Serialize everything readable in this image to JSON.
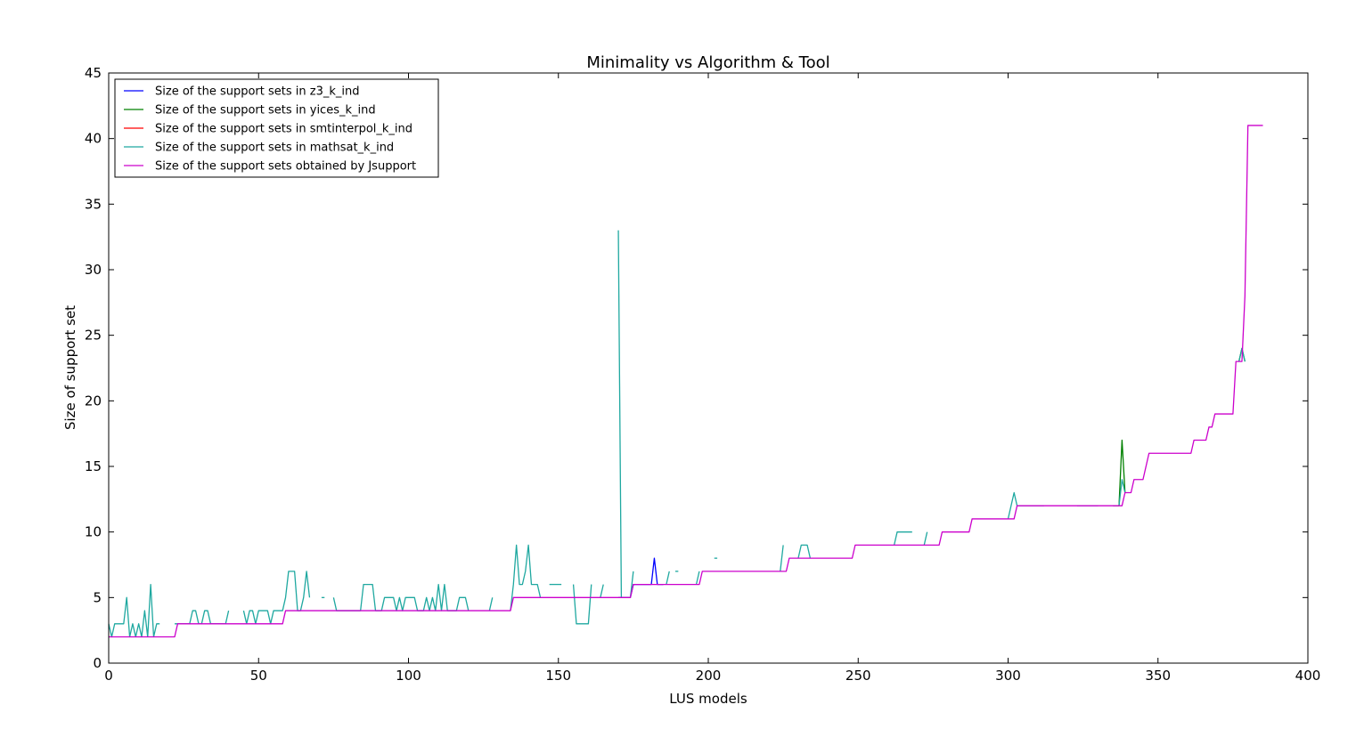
{
  "chart_data": {
    "type": "line",
    "title": "Minimality vs Algorithm & Tool",
    "xlabel": "LUS models",
    "ylabel": "Size of support set",
    "xlim": [
      0,
      400
    ],
    "ylim": [
      0,
      45
    ],
    "xticks": [
      0,
      50,
      100,
      150,
      200,
      250,
      300,
      350,
      400
    ],
    "yticks": [
      0,
      5,
      10,
      15,
      20,
      25,
      30,
      35,
      40,
      45
    ],
    "legend_position": "top-left",
    "series": [
      {
        "name": "Size of the support sets in z3_k_ind",
        "color": "#0000ff",
        "segments": [
          [
            [
              170,
              5
            ],
            [
              171,
              5
            ],
            [
              172,
              5
            ],
            [
              173,
              5
            ],
            [
              174,
              5
            ],
            [
              175,
              6
            ],
            [
              176,
              6
            ],
            [
              177,
              6
            ],
            [
              178,
              6
            ],
            [
              179,
              6
            ],
            [
              180,
              6
            ],
            [
              181,
              6
            ],
            [
              182,
              8
            ],
            [
              183,
              6
            ],
            [
              184,
              6
            ],
            [
              185,
              6
            ]
          ]
        ]
      },
      {
        "name": "Size of the support sets in yices_k_ind",
        "color": "#008000",
        "segments": [
          [
            [
              335,
              12
            ],
            [
              336,
              12
            ],
            [
              337,
              12
            ],
            [
              338,
              17
            ],
            [
              339,
              13
            ]
          ],
          [
            [
              377,
              23
            ],
            [
              378,
              24
            ],
            [
              379,
              23
            ]
          ]
        ]
      },
      {
        "name": "Size of the support sets in smtinterpol_k_ind",
        "color": "#ff0000",
        "segments": []
      },
      {
        "name": "Size of the support sets in mathsat_k_ind",
        "color": "#1fa8a0",
        "segments": [
          [
            [
              0,
              3
            ],
            [
              1,
              2
            ],
            [
              2,
              3
            ],
            [
              3,
              3
            ],
            [
              4,
              3
            ],
            [
              5,
              3
            ],
            [
              6,
              5
            ],
            [
              7,
              2
            ],
            [
              8,
              3
            ],
            [
              9,
              2
            ],
            [
              10,
              3
            ],
            [
              11,
              2
            ],
            [
              12,
              4
            ],
            [
              13,
              2
            ],
            [
              14,
              6
            ],
            [
              15,
              2
            ],
            [
              16,
              3
            ],
            [
              17,
              3
            ]
          ],
          [
            [
              22,
              3
            ],
            [
              23,
              3
            ],
            [
              24,
              3
            ],
            [
              25,
              3
            ],
            [
              26,
              3
            ],
            [
              27,
              3
            ],
            [
              28,
              4
            ],
            [
              29,
              4
            ],
            [
              30,
              3
            ],
            [
              31,
              3
            ],
            [
              32,
              4
            ],
            [
              33,
              4
            ],
            [
              34,
              3
            ],
            [
              35,
              3
            ],
            [
              36,
              3
            ],
            [
              37,
              3
            ],
            [
              38,
              3
            ],
            [
              39,
              3
            ],
            [
              40,
              4
            ]
          ],
          [
            [
              45,
              4
            ],
            [
              46,
              3
            ],
            [
              47,
              4
            ],
            [
              48,
              4
            ],
            [
              49,
              3
            ],
            [
              50,
              4
            ],
            [
              51,
              4
            ],
            [
              52,
              4
            ],
            [
              53,
              4
            ],
            [
              54,
              3
            ],
            [
              55,
              4
            ],
            [
              56,
              4
            ],
            [
              57,
              4
            ],
            [
              58,
              4
            ],
            [
              59,
              5
            ],
            [
              60,
              7
            ],
            [
              61,
              7
            ],
            [
              62,
              7
            ],
            [
              63,
              4
            ],
            [
              64,
              4
            ],
            [
              65,
              5
            ],
            [
              66,
              7
            ],
            [
              67,
              5
            ]
          ],
          [
            [
              71,
              5
            ],
            [
              72,
              5
            ]
          ],
          [
            [
              75,
              5
            ],
            [
              76,
              4
            ],
            [
              77,
              4
            ],
            [
              78,
              4
            ],
            [
              79,
              4
            ],
            [
              80,
              4
            ],
            [
              81,
              4
            ],
            [
              82,
              4
            ],
            [
              83,
              4
            ],
            [
              84,
              4
            ],
            [
              85,
              6
            ],
            [
              86,
              6
            ],
            [
              87,
              6
            ],
            [
              88,
              6
            ],
            [
              89,
              4
            ],
            [
              90,
              4
            ],
            [
              91,
              4
            ],
            [
              92,
              5
            ],
            [
              93,
              5
            ],
            [
              94,
              5
            ],
            [
              95,
              5
            ],
            [
              96,
              4
            ],
            [
              97,
              5
            ],
            [
              98,
              4
            ],
            [
              99,
              5
            ],
            [
              100,
              5
            ],
            [
              101,
              5
            ],
            [
              102,
              5
            ],
            [
              103,
              4
            ],
            [
              104,
              4
            ],
            [
              105,
              4
            ],
            [
              106,
              5
            ],
            [
              107,
              4
            ],
            [
              108,
              5
            ],
            [
              109,
              4
            ],
            [
              110,
              6
            ],
            [
              111,
              4
            ],
            [
              112,
              6
            ],
            [
              113,
              4
            ],
            [
              114,
              4
            ],
            [
              115,
              4
            ],
            [
              116,
              4
            ],
            [
              117,
              5
            ],
            [
              118,
              5
            ],
            [
              119,
              5
            ],
            [
              120,
              4
            ]
          ],
          [
            [
              127,
              4
            ],
            [
              128,
              5
            ]
          ],
          [
            [
              134,
              4
            ],
            [
              135,
              6
            ],
            [
              136,
              9
            ],
            [
              137,
              6
            ],
            [
              138,
              6
            ],
            [
              139,
              7
            ],
            [
              140,
              9
            ],
            [
              141,
              6
            ],
            [
              142,
              6
            ],
            [
              143,
              6
            ],
            [
              144,
              5
            ]
          ],
          [
            [
              147,
              6
            ],
            [
              148,
              6
            ],
            [
              149,
              6
            ],
            [
              150,
              6
            ],
            [
              151,
              6
            ]
          ],
          [
            [
              155,
              6
            ],
            [
              156,
              3
            ],
            [
              157,
              3
            ],
            [
              158,
              3
            ],
            [
              159,
              3
            ],
            [
              160,
              3
            ],
            [
              161,
              6
            ]
          ],
          [
            [
              164,
              5
            ],
            [
              165,
              6
            ]
          ],
          [
            [
              170,
              33
            ],
            [
              171,
              5
            ],
            [
              172,
              5
            ],
            [
              173,
              5
            ],
            [
              174,
              5
            ],
            [
              175,
              7
            ]
          ],
          [
            [
              186,
              6
            ],
            [
              187,
              7
            ]
          ],
          [
            [
              189,
              7
            ],
            [
              190,
              7
            ]
          ],
          [
            [
              196,
              6
            ],
            [
              197,
              7
            ]
          ],
          [
            [
              202,
              8
            ],
            [
              203,
              8
            ]
          ],
          [
            [
              224,
              7
            ],
            [
              225,
              9
            ]
          ],
          [
            [
              230,
              8
            ],
            [
              231,
              9
            ],
            [
              232,
              9
            ],
            [
              233,
              9
            ],
            [
              234,
              8
            ]
          ],
          [
            [
              262,
              9
            ],
            [
              263,
              10
            ],
            [
              264,
              10
            ],
            [
              265,
              10
            ],
            [
              266,
              10
            ],
            [
              267,
              10
            ],
            [
              268,
              10
            ]
          ],
          [
            [
              272,
              9
            ],
            [
              273,
              10
            ]
          ],
          [
            [
              300,
              11
            ],
            [
              301,
              12
            ],
            [
              302,
              13
            ],
            [
              303,
              12
            ],
            [
              304,
              12
            ],
            [
              305,
              12
            ],
            [
              306,
              12
            ],
            [
              307,
              12
            ],
            [
              308,
              12
            ],
            [
              309,
              12
            ],
            [
              310,
              12
            ],
            [
              311,
              12
            ],
            [
              312,
              12
            ]
          ],
          [
            [
              323,
              12
            ],
            [
              324,
              12
            ],
            [
              325,
              12
            ],
            [
              326,
              12
            ],
            [
              327,
              12
            ],
            [
              328,
              12
            ],
            [
              329,
              12
            ],
            [
              330,
              12
            ]
          ],
          [
            [
              337,
              12
            ],
            [
              338,
              14
            ],
            [
              339,
              13
            ]
          ],
          [
            [
              377,
              23
            ],
            [
              378,
              24
            ],
            [
              379,
              23
            ]
          ]
        ]
      },
      {
        "name": "Size of the support sets obtained by Jsupport",
        "color": "#cc00cc",
        "segments": [
          [
            [
              0,
              2
            ],
            [
              22,
              2
            ],
            [
              23,
              3
            ],
            [
              57,
              3
            ],
            [
              58,
              3
            ],
            [
              59,
              4
            ],
            [
              133,
              4
            ],
            [
              134,
              4
            ],
            [
              135,
              5
            ],
            [
              174,
              5
            ],
            [
              175,
              6
            ],
            [
              197,
              6
            ],
            [
              198,
              7
            ],
            [
              226,
              7
            ],
            [
              227,
              8
            ],
            [
              248,
              8
            ],
            [
              249,
              9
            ],
            [
              277,
              9
            ],
            [
              278,
              10
            ],
            [
              287,
              10
            ],
            [
              288,
              11
            ],
            [
              302,
              11
            ],
            [
              303,
              12
            ],
            [
              338,
              12
            ],
            [
              339,
              13
            ],
            [
              341,
              13
            ],
            [
              342,
              14
            ],
            [
              345,
              14
            ],
            [
              346,
              15
            ],
            [
              347,
              16
            ],
            [
              361,
              16
            ],
            [
              362,
              17
            ],
            [
              366,
              17
            ],
            [
              367,
              18
            ],
            [
              368,
              18
            ],
            [
              369,
              19
            ],
            [
              375,
              19
            ],
            [
              376,
              23
            ],
            [
              378,
              23
            ],
            [
              379,
              28
            ],
            [
              380,
              41
            ],
            [
              385,
              41
            ]
          ]
        ]
      }
    ]
  }
}
